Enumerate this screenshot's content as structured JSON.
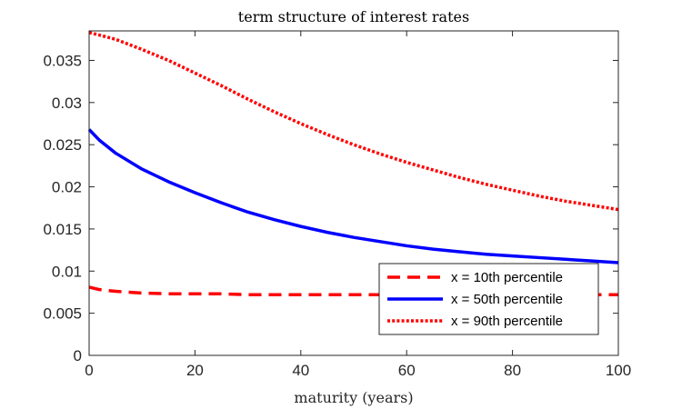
{
  "chart_data": {
    "type": "line",
    "title": "term structure of interest rates",
    "xlabel": "maturity (years)",
    "ylabel": "",
    "xlim": [
      0,
      100
    ],
    "ylim": [
      0,
      0.0385
    ],
    "xticks": [
      0,
      20,
      40,
      60,
      80,
      100
    ],
    "xtick_labels": [
      "0",
      "20",
      "40",
      "60",
      "80",
      "100"
    ],
    "yticks": [
      0,
      0.005,
      0.01,
      0.015,
      0.02,
      0.025,
      0.03,
      0.035
    ],
    "ytick_labels": [
      "0",
      "0.005",
      "0.01",
      "0.015",
      "0.02",
      "0.025",
      "0.03",
      "0.035"
    ],
    "grid": false,
    "legend_position": "bottom-right",
    "x": [
      0,
      2,
      5,
      10,
      15,
      20,
      25,
      30,
      35,
      40,
      45,
      50,
      55,
      60,
      65,
      70,
      75,
      80,
      85,
      90,
      95,
      100
    ],
    "series": [
      {
        "name": "x = 10th percentile",
        "color": "#ff0000",
        "style": "dashed",
        "values": [
          0.0081,
          0.0078,
          0.0076,
          0.0074,
          0.0073,
          0.0073,
          0.0073,
          0.0072,
          0.0072,
          0.0072,
          0.0072,
          0.0072,
          0.0072,
          0.0072,
          0.0072,
          0.0072,
          0.0072,
          0.0072,
          0.0072,
          0.0072,
          0.0072,
          0.0072
        ]
      },
      {
        "name": "x = 50th percentile",
        "color": "#0000ff",
        "style": "solid",
        "values": [
          0.0268,
          0.0255,
          0.024,
          0.0221,
          0.0206,
          0.0193,
          0.0181,
          0.017,
          0.0161,
          0.0153,
          0.0146,
          0.014,
          0.0135,
          0.013,
          0.0126,
          0.0123,
          0.012,
          0.0118,
          0.0116,
          0.0114,
          0.0112,
          0.011
        ]
      },
      {
        "name": "x = 90th percentile",
        "color": "#ff0000",
        "style": "dotted",
        "values": [
          0.0383,
          0.038,
          0.0375,
          0.0363,
          0.035,
          0.0335,
          0.032,
          0.0304,
          0.0289,
          0.0275,
          0.0262,
          0.025,
          0.0239,
          0.0229,
          0.022,
          0.0211,
          0.0203,
          0.0196,
          0.0189,
          0.0183,
          0.0178,
          0.0173
        ]
      }
    ]
  }
}
